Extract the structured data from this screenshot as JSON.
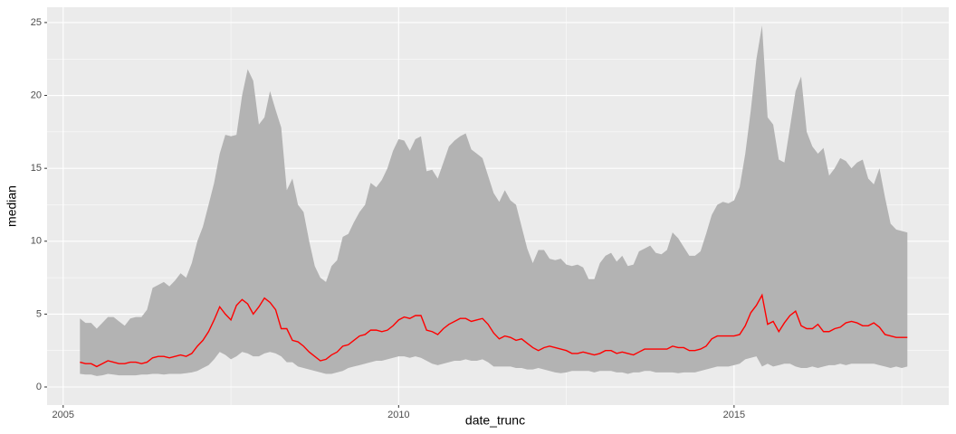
{
  "chart_data": {
    "type": "ribbon-line",
    "x_label": "date_trunc",
    "y_label": "median",
    "xlim": [
      2004.76,
      2018.2
    ],
    "ylim": [
      -1.24,
      26.05
    ],
    "xticks": [
      2005,
      2010,
      2015
    ],
    "yticks": [
      0,
      5,
      10,
      15,
      20,
      25
    ],
    "grid": true,
    "background": "#ebebeb",
    "x": [
      2005.25,
      2005.333,
      2005.417,
      2005.5,
      2005.583,
      2005.667,
      2005.75,
      2005.833,
      2005.917,
      2006.0,
      2006.083,
      2006.167,
      2006.25,
      2006.333,
      2006.417,
      2006.5,
      2006.583,
      2006.667,
      2006.75,
      2006.833,
      2006.917,
      2007.0,
      2007.083,
      2007.167,
      2007.25,
      2007.333,
      2007.417,
      2007.5,
      2007.583,
      2007.667,
      2007.75,
      2007.833,
      2007.917,
      2008.0,
      2008.083,
      2008.167,
      2008.25,
      2008.333,
      2008.417,
      2008.5,
      2008.583,
      2008.667,
      2008.75,
      2008.833,
      2008.917,
      2009.0,
      2009.083,
      2009.167,
      2009.25,
      2009.333,
      2009.417,
      2009.5,
      2009.583,
      2009.667,
      2009.75,
      2009.833,
      2009.917,
      2010.0,
      2010.083,
      2010.167,
      2010.25,
      2010.333,
      2010.417,
      2010.5,
      2010.583,
      2010.667,
      2010.75,
      2010.833,
      2010.917,
      2011.0,
      2011.083,
      2011.167,
      2011.25,
      2011.333,
      2011.417,
      2011.5,
      2011.583,
      2011.667,
      2011.75,
      2011.833,
      2011.917,
      2012.0,
      2012.083,
      2012.167,
      2012.25,
      2012.333,
      2012.417,
      2012.5,
      2012.583,
      2012.667,
      2012.75,
      2012.833,
      2012.917,
      2013.0,
      2013.083,
      2013.167,
      2013.25,
      2013.333,
      2013.417,
      2013.5,
      2013.583,
      2013.667,
      2013.75,
      2013.833,
      2013.917,
      2014.0,
      2014.083,
      2014.167,
      2014.25,
      2014.333,
      2014.417,
      2014.5,
      2014.583,
      2014.667,
      2014.75,
      2014.833,
      2014.917,
      2015.0,
      2015.083,
      2015.167,
      2015.25,
      2015.333,
      2015.417,
      2015.5,
      2015.583,
      2015.667,
      2015.75,
      2015.833,
      2015.917,
      2016.0,
      2016.083,
      2016.167,
      2016.25,
      2016.333,
      2016.417,
      2016.5,
      2016.583,
      2016.667,
      2016.75,
      2016.833,
      2016.917,
      2017.0,
      2017.083,
      2017.167,
      2017.25,
      2017.333,
      2017.417,
      2017.5,
      2017.583
    ],
    "ribbon": {
      "color": "#b3b3b3",
      "ymax": [
        4.7,
        4.4,
        4.4,
        4.0,
        4.4,
        4.8,
        4.8,
        4.5,
        4.2,
        4.7,
        4.8,
        4.8,
        5.3,
        6.8,
        7.0,
        7.2,
        6.9,
        7.3,
        7.8,
        7.5,
        8.5,
        10.0,
        11.0,
        12.5,
        14.0,
        16.0,
        17.3,
        17.2,
        17.3,
        20.0,
        21.8,
        21.0,
        18.0,
        18.5,
        20.3,
        19.0,
        17.8,
        13.5,
        14.3,
        12.5,
        12.0,
        10.0,
        8.3,
        7.5,
        7.2,
        8.3,
        8.7,
        10.3,
        10.5,
        11.3,
        12.0,
        12.5,
        14.0,
        13.7,
        14.2,
        15.0,
        16.2,
        17.0,
        16.9,
        16.2,
        17.0,
        17.2,
        14.8,
        14.9,
        14.3,
        15.4,
        16.5,
        16.9,
        17.2,
        17.4,
        16.3,
        16.0,
        15.7,
        14.5,
        13.3,
        12.7,
        13.5,
        12.8,
        12.5,
        11.0,
        9.5,
        8.5,
        9.4,
        9.4,
        8.8,
        8.7,
        8.8,
        8.4,
        8.3,
        8.4,
        8.2,
        7.4,
        7.4,
        8.5,
        9.0,
        9.2,
        8.6,
        9.0,
        8.3,
        8.4,
        9.3,
        9.5,
        9.7,
        9.2,
        9.1,
        9.4,
        10.6,
        10.2,
        9.6,
        9.0,
        9.0,
        9.3,
        10.5,
        11.8,
        12.5,
        12.7,
        12.6,
        12.8,
        13.7,
        16.0,
        19.0,
        22.5,
        24.8,
        18.5,
        18.0,
        15.6,
        15.4,
        17.8,
        20.3,
        21.3,
        17.5,
        16.5,
        16.0,
        16.4,
        14.5,
        15.0,
        15.7,
        15.5,
        15.0,
        15.4,
        15.6,
        14.3,
        13.9,
        15.0,
        13.0,
        11.2,
        10.8,
        10.7,
        10.6
      ],
      "ymin": [
        0.9,
        0.85,
        0.85,
        0.75,
        0.8,
        0.9,
        0.85,
        0.8,
        0.8,
        0.8,
        0.8,
        0.85,
        0.85,
        0.9,
        0.9,
        0.85,
        0.9,
        0.9,
        0.9,
        0.95,
        1.0,
        1.1,
        1.3,
        1.5,
        1.9,
        2.4,
        2.2,
        1.9,
        2.1,
        2.4,
        2.3,
        2.1,
        2.1,
        2.3,
        2.4,
        2.3,
        2.1,
        1.7,
        1.7,
        1.4,
        1.3,
        1.2,
        1.1,
        1.0,
        0.9,
        0.9,
        1.0,
        1.1,
        1.3,
        1.4,
        1.5,
        1.6,
        1.7,
        1.8,
        1.8,
        1.9,
        2.0,
        2.1,
        2.1,
        2.0,
        2.1,
        2.0,
        1.8,
        1.6,
        1.5,
        1.6,
        1.7,
        1.8,
        1.8,
        1.9,
        1.8,
        1.8,
        1.9,
        1.7,
        1.4,
        1.4,
        1.4,
        1.4,
        1.3,
        1.3,
        1.2,
        1.2,
        1.3,
        1.2,
        1.1,
        1.0,
        0.95,
        1.0,
        1.1,
        1.1,
        1.1,
        1.1,
        1.0,
        1.1,
        1.1,
        1.1,
        1.0,
        1.0,
        0.9,
        1.0,
        1.0,
        1.1,
        1.1,
        1.0,
        1.0,
        1.0,
        1.0,
        0.95,
        1.0,
        1.0,
        1.0,
        1.1,
        1.2,
        1.3,
        1.4,
        1.4,
        1.4,
        1.5,
        1.6,
        1.9,
        2.0,
        2.1,
        1.4,
        1.6,
        1.4,
        1.5,
        1.6,
        1.6,
        1.4,
        1.3,
        1.3,
        1.4,
        1.3,
        1.4,
        1.5,
        1.5,
        1.6,
        1.5,
        1.6,
        1.6,
        1.6,
        1.6,
        1.6,
        1.5,
        1.4,
        1.3,
        1.4,
        1.3,
        1.4
      ]
    },
    "series": [
      {
        "color": "#ff0000",
        "values": [
          1.7,
          1.6,
          1.6,
          1.4,
          1.6,
          1.8,
          1.7,
          1.6,
          1.6,
          1.7,
          1.7,
          1.6,
          1.7,
          2.0,
          2.1,
          2.1,
          2.0,
          2.1,
          2.2,
          2.1,
          2.3,
          2.8,
          3.2,
          3.8,
          4.6,
          5.5,
          5.0,
          4.6,
          5.6,
          6.0,
          5.7,
          5.0,
          5.5,
          6.1,
          5.8,
          5.3,
          4.0,
          4.0,
          3.2,
          3.1,
          2.8,
          2.4,
          2.1,
          1.8,
          1.9,
          2.2,
          2.4,
          2.8,
          2.9,
          3.2,
          3.5,
          3.6,
          3.9,
          3.9,
          3.8,
          3.9,
          4.2,
          4.6,
          4.8,
          4.7,
          4.9,
          4.9,
          3.9,
          3.8,
          3.6,
          4.0,
          4.3,
          4.5,
          4.7,
          4.7,
          4.5,
          4.6,
          4.7,
          4.3,
          3.7,
          3.3,
          3.5,
          3.4,
          3.2,
          3.3,
          3.0,
          2.7,
          2.5,
          2.7,
          2.8,
          2.7,
          2.6,
          2.5,
          2.3,
          2.3,
          2.4,
          2.3,
          2.2,
          2.3,
          2.5,
          2.5,
          2.3,
          2.4,
          2.3,
          2.2,
          2.4,
          2.6,
          2.6,
          2.6,
          2.6,
          2.6,
          2.8,
          2.7,
          2.7,
          2.5,
          2.5,
          2.6,
          2.8,
          3.3,
          3.5,
          3.5,
          3.5,
          3.5,
          3.6,
          4.2,
          5.1,
          5.6,
          6.3,
          4.3,
          4.5,
          3.8,
          4.4,
          4.9,
          5.2,
          4.2,
          4.0,
          4.0,
          4.3,
          3.8,
          3.8,
          4.0,
          4.1,
          4.4,
          4.5,
          4.4,
          4.2,
          4.2,
          4.4,
          4.1,
          3.6,
          3.5,
          3.4,
          3.4,
          3.4
        ]
      }
    ]
  }
}
